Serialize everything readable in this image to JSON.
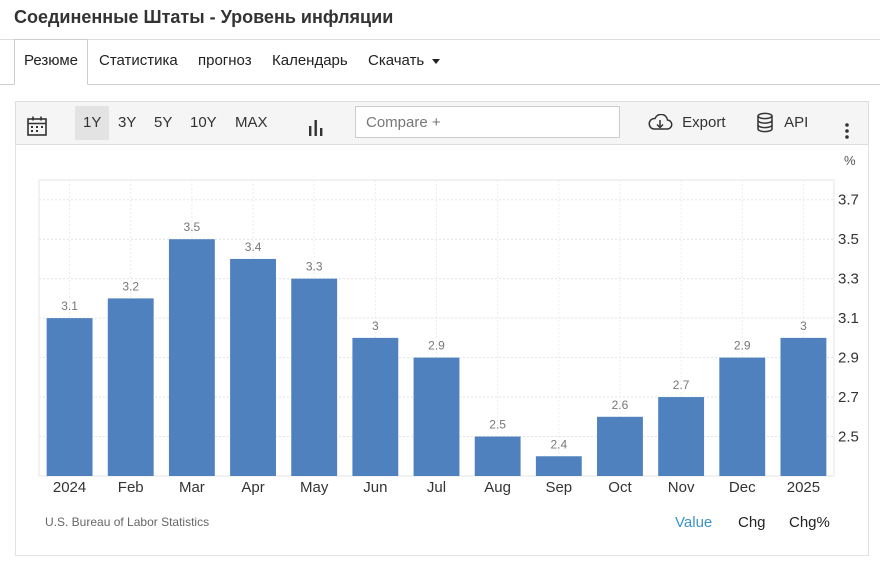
{
  "title": "Соединенные Штаты - Уровень инфляции",
  "tabs": [
    {
      "label": "Резюме",
      "active": true
    },
    {
      "label": "Статистика"
    },
    {
      "label": "прогноз"
    },
    {
      "label": "Календарь"
    },
    {
      "label": "Скачать",
      "dropdown": true
    }
  ],
  "toolbar": {
    "calendar_icon": "calendar-icon",
    "ranges": [
      "1Y",
      "3Y",
      "5Y",
      "10Y",
      "MAX"
    ],
    "active_range": "1Y",
    "chart_type_icon": "bar-chart-icon",
    "compare_placeholder": "Compare +",
    "export_label": "Export",
    "api_label": "API",
    "more_icon": "more-vertical-icon"
  },
  "chart_data": {
    "type": "bar",
    "categories": [
      "2024",
      "Feb",
      "Mar",
      "Apr",
      "May",
      "Jun",
      "Jul",
      "Aug",
      "Sep",
      "Oct",
      "Nov",
      "Dec",
      "2025"
    ],
    "values": [
      3.1,
      3.2,
      3.5,
      3.4,
      3.3,
      3.0,
      2.9,
      2.5,
      2.4,
      2.6,
      2.7,
      2.9,
      3.0
    ],
    "data_labels": [
      "3.1",
      "3.2",
      "3.5",
      "3.4",
      "3.3",
      "3",
      "2.9",
      "2.5",
      "2.4",
      "2.6",
      "2.7",
      "2.9",
      "3"
    ],
    "y_unit": "%",
    "y_ticks": [
      "2.5",
      "2.7",
      "2.9",
      "3.1",
      "3.3",
      "3.5",
      "3.7"
    ],
    "ylim": [
      2.3,
      3.8
    ],
    "y_axis_side": "right",
    "grid": true,
    "bar_color": "#4e81bd"
  },
  "source": "U.S. Bureau of Labor Statistics",
  "modes": [
    "Value",
    "Chg",
    "Chg%"
  ],
  "active_mode": "Value",
  "colors": {
    "accent": "#3c94c8",
    "bar": "#4e81bd"
  }
}
